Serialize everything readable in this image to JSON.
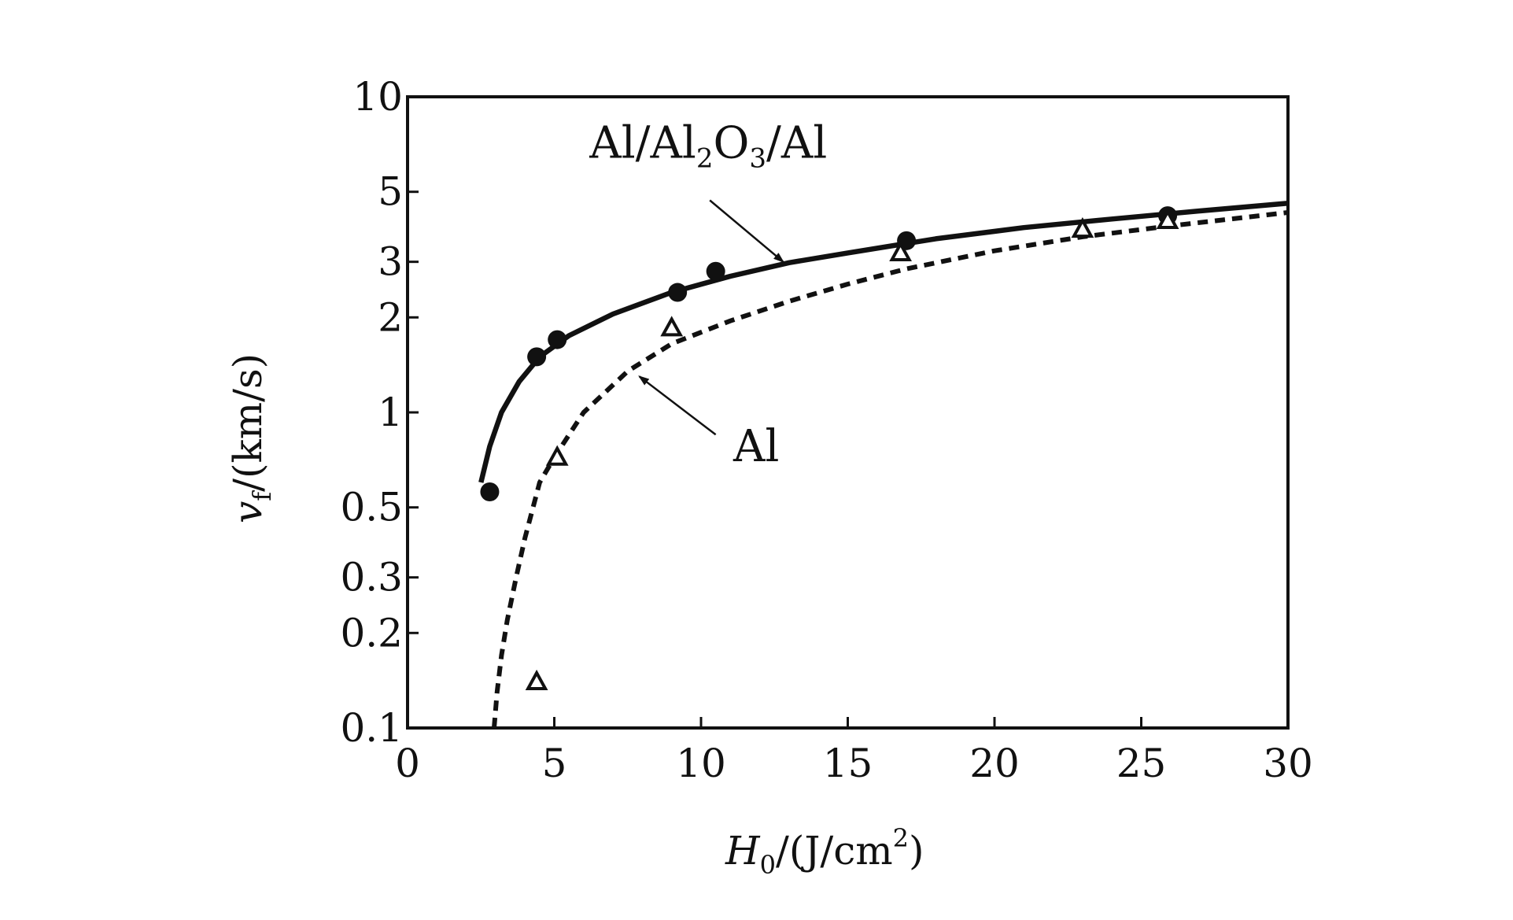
{
  "chart_data": {
    "type": "scatter",
    "title": "",
    "x_axis": {
      "label_italic": "H",
      "label_subscript": "0",
      "label_rest": "/(J/cm",
      "label_superscript": "2",
      "label_close": ")",
      "range": [
        0,
        30
      ],
      "ticks": [
        0,
        5,
        10,
        15,
        20,
        25,
        30
      ],
      "tick_labels": [
        "0",
        "5",
        "10",
        "15",
        "20",
        "25",
        "30"
      ]
    },
    "y_axis": {
      "label_italic": "v",
      "label_subscript": "f",
      "label_rest": "/(km/s)",
      "scale": "log",
      "range": [
        0.1,
        10
      ],
      "ticks": [
        0.1,
        0.2,
        0.3,
        0.5,
        1,
        2,
        3,
        5,
        10
      ],
      "tick_labels": [
        "0.1",
        "0.2",
        "0.3",
        "0.5",
        "1",
        "2",
        "3",
        "5",
        "10"
      ]
    },
    "grid": false,
    "series": [
      {
        "name": "Al/Al2O3/Al",
        "marker": "filled-circle",
        "line_style": "solid",
        "color": "#111111",
        "points": [
          {
            "x": 2.8,
            "y": 0.56
          },
          {
            "x": 4.4,
            "y": 1.5
          },
          {
            "x": 5.1,
            "y": 1.7
          },
          {
            "x": 9.2,
            "y": 2.4
          },
          {
            "x": 10.5,
            "y": 2.8
          },
          {
            "x": 17.0,
            "y": 3.5
          },
          {
            "x": 25.9,
            "y": 4.2
          }
        ],
        "curve": [
          {
            "x": 2.5,
            "y": 0.6
          },
          {
            "x": 2.8,
            "y": 0.78
          },
          {
            "x": 3.2,
            "y": 1.0
          },
          {
            "x": 3.8,
            "y": 1.25
          },
          {
            "x": 4.5,
            "y": 1.5
          },
          {
            "x": 5.5,
            "y": 1.75
          },
          {
            "x": 7.0,
            "y": 2.05
          },
          {
            "x": 9.0,
            "y": 2.4
          },
          {
            "x": 11.0,
            "y": 2.7
          },
          {
            "x": 13.0,
            "y": 2.98
          },
          {
            "x": 15.0,
            "y": 3.2
          },
          {
            "x": 18.0,
            "y": 3.55
          },
          {
            "x": 21.0,
            "y": 3.85
          },
          {
            "x": 24.0,
            "y": 4.1
          },
          {
            "x": 27.0,
            "y": 4.35
          },
          {
            "x": 30.0,
            "y": 4.6
          }
        ]
      },
      {
        "name": "Al",
        "marker": "open-triangle",
        "line_style": "dashed",
        "color": "#111111",
        "points": [
          {
            "x": 4.4,
            "y": 0.14
          },
          {
            "x": 5.1,
            "y": 0.72
          },
          {
            "x": 9.0,
            "y": 1.85
          },
          {
            "x": 16.8,
            "y": 3.2
          },
          {
            "x": 23.0,
            "y": 3.8
          },
          {
            "x": 25.9,
            "y": 4.05
          }
        ],
        "curve": [
          {
            "x": 2.95,
            "y": 0.1
          },
          {
            "x": 3.05,
            "y": 0.13
          },
          {
            "x": 3.2,
            "y": 0.17
          },
          {
            "x": 3.4,
            "y": 0.22
          },
          {
            "x": 3.7,
            "y": 0.3
          },
          {
            "x": 4.0,
            "y": 0.4
          },
          {
            "x": 4.5,
            "y": 0.6
          },
          {
            "x": 5.0,
            "y": 0.72
          },
          {
            "x": 6.0,
            "y": 1.0
          },
          {
            "x": 7.5,
            "y": 1.35
          },
          {
            "x": 9.0,
            "y": 1.65
          },
          {
            "x": 11.0,
            "y": 1.95
          },
          {
            "x": 13.0,
            "y": 2.25
          },
          {
            "x": 15.0,
            "y": 2.55
          },
          {
            "x": 17.0,
            "y": 2.85
          },
          {
            "x": 20.0,
            "y": 3.25
          },
          {
            "x": 23.0,
            "y": 3.6
          },
          {
            "x": 26.0,
            "y": 3.9
          },
          {
            "x": 30.0,
            "y": 4.3
          }
        ]
      }
    ],
    "annotations": [
      {
        "name": "label-al-al2o3-al",
        "parts": [
          {
            "text": "Al/Al",
            "sub": false
          },
          {
            "text": "2",
            "sub": true
          },
          {
            "text": "O",
            "sub": false
          },
          {
            "text": "3",
            "sub": true
          },
          {
            "text": "/Al",
            "sub": false
          }
        ],
        "text_at": {
          "x": 6.2,
          "y": 6.4
        },
        "arrow_from": {
          "x": 10.3,
          "y": 4.7
        },
        "arrow_to": {
          "x": 12.8,
          "y": 3.0
        }
      },
      {
        "name": "label-al",
        "parts": [
          {
            "text": "Al",
            "sub": false
          }
        ],
        "text_at": {
          "x": 11.1,
          "y": 0.7
        },
        "arrow_from": {
          "x": 10.5,
          "y": 0.85
        },
        "arrow_to": {
          "x": 7.9,
          "y": 1.3
        }
      }
    ]
  }
}
